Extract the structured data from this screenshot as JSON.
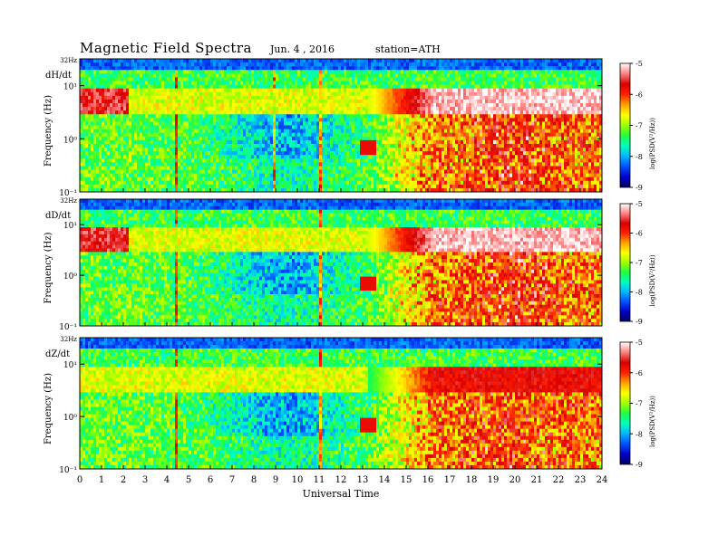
{
  "header": {
    "title": "Magnetic  Field  Spectra",
    "date": "Jun. 4  , 2016",
    "station": "station=ATH"
  },
  "chart_data": [
    {
      "type": "heatmap",
      "component": "dH/dt",
      "ylabel": "Frequency (Hz)",
      "ytick_labels": [
        "32Hz",
        "10¹",
        "10⁰",
        "10⁻¹"
      ],
      "y_scale": "log",
      "ylim_hz": [
        0.1,
        32
      ],
      "x_range_ut_hours": [
        0,
        24
      ],
      "colorbar": {
        "label": "log(PSD(V²/Hz))",
        "ticks": [
          "-5",
          "-6",
          "-7",
          "-8",
          "-9"
        ],
        "range": [
          -9,
          -5
        ]
      }
    },
    {
      "type": "heatmap",
      "component": "dD/dt",
      "ylabel": "Frequency (Hz)",
      "ytick_labels": [
        "32Hz",
        "10¹",
        "10⁰",
        "10⁻¹"
      ],
      "y_scale": "log",
      "ylim_hz": [
        0.1,
        32
      ],
      "x_range_ut_hours": [
        0,
        24
      ],
      "colorbar": {
        "label": "log(PSD(V²/Hz))",
        "ticks": [
          "-5",
          "-6",
          "-7",
          "-8",
          "-9"
        ],
        "range": [
          -9,
          -5
        ]
      }
    },
    {
      "type": "heatmap",
      "component": "dZ/dt",
      "ylabel": "Frequency (Hz)",
      "ytick_labels": [
        "32Hz",
        "10¹",
        "10⁰",
        "10⁻¹"
      ],
      "y_scale": "log",
      "ylim_hz": [
        0.1,
        32
      ],
      "x_range_ut_hours": [
        0,
        24
      ],
      "colorbar": {
        "label": "log(PSD(V²/Hz))",
        "ticks": [
          "-5",
          "-6",
          "-7",
          "-8",
          "-9"
        ],
        "range": [
          -9,
          -5
        ]
      }
    }
  ],
  "xaxis": {
    "label": "Universal Time",
    "ticks": [
      "0",
      "1",
      "2",
      "3",
      "4",
      "5",
      "6",
      "7",
      "8",
      "9",
      "10",
      "11",
      "12",
      "13",
      "14",
      "15",
      "16",
      "17",
      "18",
      "19",
      "20",
      "21",
      "22",
      "23",
      "24"
    ]
  },
  "colormap": [
    "#000060",
    "#0000c8",
    "#0050ff",
    "#00b4ff",
    "#00ffc0",
    "#20ff40",
    "#a0ff00",
    "#ffff00",
    "#ffa000",
    "#ff2000",
    "#d80000",
    "#ff8080",
    "#ffffff"
  ]
}
